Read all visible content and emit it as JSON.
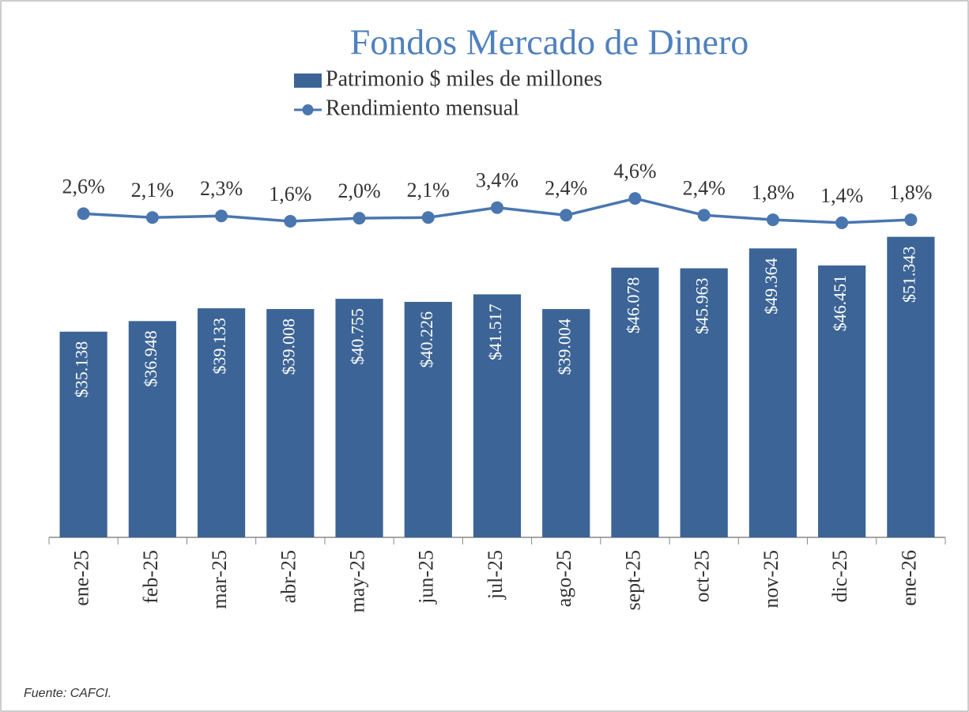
{
  "chart_data": {
    "type": "bar_line",
    "title": "Fondos Mercado de Dinero",
    "source": "Fuente: CAFCI.",
    "categories": [
      "ene-25",
      "feb-25",
      "mar-25",
      "abr-25",
      "may-25",
      "jun-25",
      "jul-25",
      "ago-25",
      "sept-25",
      "oct-25",
      "nov-25",
      "dic-25",
      "ene-26"
    ],
    "series": [
      {
        "name": "Patrimonio $ miles de millones",
        "type": "bar",
        "color": "#3c6496",
        "values": [
          35138,
          36948,
          39133,
          39008,
          40755,
          40226,
          41517,
          39004,
          46078,
          45963,
          49364,
          46451,
          51343
        ],
        "value_labels": [
          "$35.138",
          "$36.948",
          "$39.133",
          "$39.008",
          "$40.755",
          "$40.226",
          "$41.517",
          "$39.004",
          "$46.078",
          "$45.963",
          "$49.364",
          "$46.451",
          "$51.343"
        ]
      },
      {
        "name": "Rendimiento mensual",
        "type": "line",
        "axis": "y2",
        "color": "#4a76b0",
        "values": [
          2.6,
          2.1,
          2.3,
          1.6,
          2.0,
          2.1,
          3.4,
          2.4,
          4.6,
          2.4,
          1.8,
          1.4,
          1.8
        ],
        "value_labels": [
          "2,6%",
          "2,1%",
          "2,3%",
          "1,6%",
          "2,0%",
          "2,1%",
          "3,4%",
          "2,4%",
          "4,6%",
          "2,4%",
          "1,8%",
          "1,4%",
          "1,8%"
        ]
      }
    ],
    "ylim": [
      0,
      67500
    ],
    "y2lim": [
      -40,
      12
    ]
  }
}
